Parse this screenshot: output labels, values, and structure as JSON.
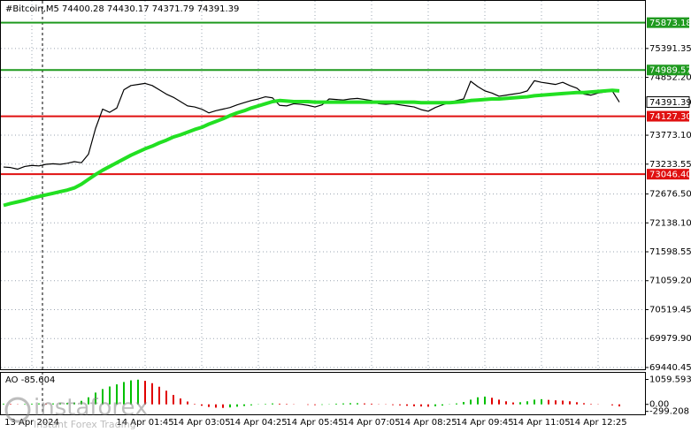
{
  "chart_data": [
    {
      "type": "line",
      "title": "#Bitcoin,M5  74400.28 74430.17 74371.79 74391.39",
      "categories": [
        null,
        null,
        null,
        null,
        "13 Apr 2024",
        null,
        null,
        null,
        null,
        null,
        null,
        null,
        null,
        null,
        null,
        null,
        null,
        null,
        null,
        null,
        "14 Apr 01:45",
        null,
        null,
        null,
        null,
        null,
        null,
        null,
        "14 Apr 03:05",
        null,
        null,
        null,
        null,
        null,
        null,
        null,
        "14 Apr 04:25",
        null,
        null,
        null,
        null,
        null,
        null,
        null,
        "14 Apr 05:45",
        null,
        null,
        null,
        null,
        null,
        null,
        null,
        "14 Apr 07:05",
        null,
        null,
        null,
        null,
        null,
        null,
        null,
        "14 Apr 08:25",
        null,
        null,
        null,
        null,
        null,
        null,
        null,
        "14 Apr 09:45",
        null,
        null,
        null,
        null,
        null,
        null,
        null,
        "14 Apr 11:05",
        null,
        null,
        null,
        null,
        null,
        null,
        null,
        "14 Apr 12:25",
        null,
        null,
        null
      ],
      "series": [
        {
          "color": "#000000",
          "values": [
            73180,
            73170,
            73140,
            73190,
            73210,
            73200,
            73230,
            73240,
            73230,
            73250,
            73280,
            73260,
            73420,
            73900,
            74260,
            74200,
            74280,
            74620,
            74700,
            74720,
            74740,
            74700,
            74620,
            74540,
            74480,
            74400,
            74320,
            74300,
            74260,
            74190,
            74230,
            74260,
            74290,
            74340,
            74380,
            74420,
            74450,
            74490,
            74470,
            74330,
            74320,
            74360,
            74350,
            74330,
            74300,
            74340,
            74450,
            74440,
            74430,
            74450,
            74460,
            74440,
            74420,
            74360,
            74350,
            74360,
            74340,
            74320,
            74300,
            74250,
            74220,
            74290,
            74340,
            74380,
            74420,
            74450,
            74780,
            74680,
            74600,
            74560,
            74500,
            74520,
            74540,
            74560,
            74600,
            74790,
            74760,
            74740,
            74720,
            74760,
            74700,
            74650,
            74540,
            74520,
            74560,
            74580,
            74600,
            74391.39
          ]
        },
        {
          "color": "#22e022",
          "values": [
            72464,
            72500,
            72530,
            72560,
            72600,
            72630,
            72660,
            72690,
            72720,
            72750,
            72790,
            72860,
            72950,
            73040,
            73120,
            73190,
            73260,
            73330,
            73400,
            73460,
            73520,
            73570,
            73630,
            73680,
            73740,
            73780,
            73830,
            73880,
            73920,
            73980,
            74030,
            74080,
            74140,
            74190,
            74230,
            74280,
            74320,
            74360,
            74400,
            74420,
            74410,
            74400,
            74400,
            74400,
            74390,
            74390,
            74390,
            74390,
            74390,
            74390,
            74390,
            74390,
            74390,
            74390,
            74390,
            74390,
            74390,
            74390,
            74390,
            74380,
            74380,
            74380,
            74380,
            74380,
            74390,
            74400,
            74420,
            74430,
            74440,
            74450,
            74450,
            74460,
            74470,
            74480,
            74490,
            74510,
            74520,
            74530,
            74540,
            74550,
            74560,
            74570,
            74570,
            74580,
            74590,
            74600,
            74610,
            74600
          ]
        }
      ],
      "levels": [
        {
          "value": 75873.18,
          "color": "#1f9a1f"
        },
        {
          "value": 74989.57,
          "color": "#1f9a1f"
        },
        {
          "value": 74127.3,
          "label": "74127.30",
          "color": "#e01010"
        },
        {
          "value": 73046.4,
          "label": "73046.40",
          "color": "#e01010"
        }
      ],
      "last_price": 74391.39,
      "ylim": [
        69407,
        76279
      ],
      "yticks": [
        75391.35,
        {
          "value": 74852.2,
          "label": "74852.20"
        },
        {
          "value": 73773.1,
          "label": "73773.10"
        },
        73233.55,
        {
          "value": 72676.5,
          "label": "72676.50"
        },
        {
          "value": 72138.1,
          "label": "72138.10"
        },
        71598.55,
        {
          "value": 71059.2,
          "label": "71059.20"
        },
        70519.45,
        {
          "value": 69979.9,
          "label": "69979.90"
        },
        69440.45
      ],
      "grid": true
    },
    {
      "type": "histogram",
      "title": "AO -85.604",
      "up_color": "#00c000",
      "down_color": "#e00000",
      "values": [
        30,
        20,
        10,
        20,
        30,
        40,
        30,
        40,
        50,
        60,
        80,
        150,
        300,
        500,
        650,
        760,
        850,
        950,
        1020,
        1050,
        1000,
        900,
        750,
        580,
        400,
        250,
        120,
        20,
        -60,
        -110,
        -140,
        -150,
        -130,
        -100,
        -70,
        -40,
        -10,
        20,
        40,
        30,
        20,
        10,
        0,
        -20,
        -30,
        -20,
        10,
        30,
        40,
        50,
        50,
        40,
        30,
        10,
        -10,
        -30,
        -40,
        -60,
        -80,
        -90,
        -100,
        -80,
        -50,
        -10,
        40,
        100,
        200,
        300,
        330,
        280,
        200,
        130,
        80,
        90,
        130,
        200,
        220,
        190,
        170,
        160,
        130,
        90,
        50,
        20,
        10,
        0,
        -40,
        -85.604
      ],
      "ylim": [
        -424,
        1342
      ],
      "yticks": [
        1059.593,
        {
          "value": 0,
          "label": "0.00"
        },
        -299.208
      ]
    }
  ],
  "watermark": {
    "brand": "instaforex",
    "tagline": "Instant Forex Trading"
  }
}
